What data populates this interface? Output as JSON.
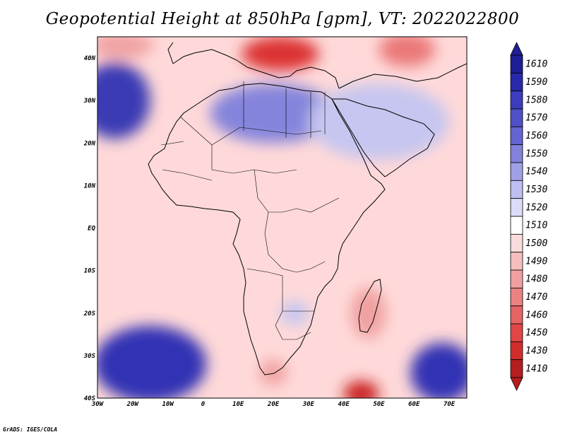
{
  "title": "Geopotential Height at 850hPa [gpm], VT: 2022022800",
  "credit": "GrADS: IGES/COLA",
  "map": {
    "lon_range": [
      -30,
      75
    ],
    "lat_range": [
      -40,
      45
    ],
    "lat_labels": [
      {
        "value": 40,
        "text": "40N"
      },
      {
        "value": 30,
        "text": "30N"
      },
      {
        "value": 20,
        "text": "20N"
      },
      {
        "value": 10,
        "text": "10N"
      },
      {
        "value": 0,
        "text": "EQ"
      },
      {
        "value": -10,
        "text": "10S"
      },
      {
        "value": -20,
        "text": "20S"
      },
      {
        "value": -30,
        "text": "30S"
      },
      {
        "value": -40,
        "text": "40S"
      }
    ],
    "lon_labels": [
      {
        "value": -30,
        "text": "30W"
      },
      {
        "value": -20,
        "text": "20W"
      },
      {
        "value": -10,
        "text": "10W"
      },
      {
        "value": 0,
        "text": "0"
      },
      {
        "value": 10,
        "text": "10E"
      },
      {
        "value": 20,
        "text": "20E"
      },
      {
        "value": 30,
        "text": "30E"
      },
      {
        "value": 40,
        "text": "40E"
      },
      {
        "value": 50,
        "text": "50E"
      },
      {
        "value": 60,
        "text": "60E"
      },
      {
        "value": 70,
        "text": "70E"
      }
    ],
    "background_color": "#ffd9d9",
    "features": [
      {
        "name": "high-azores",
        "lon": -25,
        "lat": 30,
        "rx": 10,
        "ry": 9,
        "color": "#3a3ab4"
      },
      {
        "name": "high-north-africa",
        "lon": 20,
        "lat": 27,
        "rx": 18,
        "ry": 7,
        "color": "#8484dc"
      },
      {
        "name": "high-arabia",
        "lon": 50,
        "lat": 25,
        "rx": 20,
        "ry": 9,
        "color": "#c6c6f0"
      },
      {
        "name": "high-south-atlantic",
        "lon": -15,
        "lat": -32,
        "rx": 16,
        "ry": 9,
        "color": "#3232b4"
      },
      {
        "name": "high-south-indian",
        "lon": 68,
        "lat": -34,
        "rx": 9,
        "ry": 7,
        "color": "#3232b4"
      },
      {
        "name": "high-southern-africa",
        "lon": 26,
        "lat": -20,
        "rx": 4,
        "ry": 3,
        "color": "#c6c6f0"
      },
      {
        "name": "low-mediterranean",
        "lon": 22,
        "lat": 41,
        "rx": 11,
        "ry": 4,
        "color": "#dc3232"
      },
      {
        "name": "low-iran",
        "lon": 58,
        "lat": 42,
        "rx": 8,
        "ry": 4,
        "color": "#eb7878"
      },
      {
        "name": "low-atlantic-north",
        "lon": -23,
        "lat": 43,
        "rx": 9,
        "ry": 3,
        "color": "#f0a0a0"
      },
      {
        "name": "low-madagascar",
        "lon": 47,
        "lat": -20,
        "rx": 5,
        "ry": 6,
        "color": "#f0a0a0"
      },
      {
        "name": "low-south-africa",
        "lon": 20,
        "lat": -34,
        "rx": 4,
        "ry": 3,
        "color": "#f0a0a0"
      },
      {
        "name": "low-south-indian",
        "lon": 45,
        "lat": -39,
        "rx": 5,
        "ry": 3,
        "color": "#c81e1e"
      }
    ]
  },
  "colorbar": {
    "entries": [
      {
        "label": "1610",
        "color": "#1e1e96"
      },
      {
        "label": "1590",
        "color": "#2828aa"
      },
      {
        "label": "1580",
        "color": "#3c3cbe"
      },
      {
        "label": "1570",
        "color": "#5050c8"
      },
      {
        "label": "1560",
        "color": "#6464d2"
      },
      {
        "label": "1550",
        "color": "#8282dc"
      },
      {
        "label": "1540",
        "color": "#a0a0e6"
      },
      {
        "label": "1530",
        "color": "#bebef0"
      },
      {
        "label": "1520",
        "color": "#dcdcfa"
      },
      {
        "label": "1510",
        "color": "#ffffff"
      },
      {
        "label": "1500",
        "color": "#fadcdc"
      },
      {
        "label": "1490",
        "color": "#f5bebe"
      },
      {
        "label": "1480",
        "color": "#f0a0a0"
      },
      {
        "label": "1470",
        "color": "#eb8282"
      },
      {
        "label": "1460",
        "color": "#e66464"
      },
      {
        "label": "1450",
        "color": "#e14646"
      },
      {
        "label": "1430",
        "color": "#d22d2d"
      },
      {
        "label": "1410",
        "color": "#b41e1e"
      }
    ],
    "top_extension_color": "#1e1e96",
    "bottom_extension_color": "#b41e1e"
  }
}
